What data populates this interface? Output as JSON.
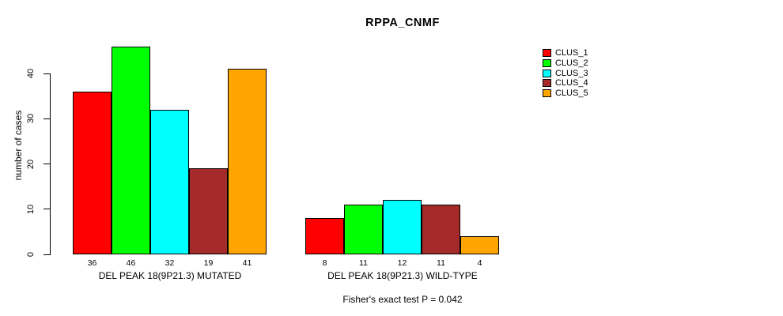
{
  "title": "RPPA_CNMF",
  "y_axis": {
    "label": "number of cases",
    "ticks": [
      "0",
      "10",
      "20",
      "30",
      "40"
    ]
  },
  "footer": {
    "stat_test": "Fisher's exact test P = 0.042"
  },
  "legend": {
    "items": [
      {
        "label": "CLUS_1",
        "color": "#FF0000"
      },
      {
        "label": "CLUS_2",
        "color": "#00FF00"
      },
      {
        "label": "CLUS_3",
        "color": "#00FFFF"
      },
      {
        "label": "CLUS_4",
        "color": "#A52A2A"
      },
      {
        "label": "CLUS_5",
        "color": "#FFA500"
      }
    ]
  },
  "chart_data": {
    "type": "bar",
    "title": "RPPA_CNMF",
    "xlabel": "",
    "ylabel": "number of cases",
    "ylim": [
      0,
      46
    ],
    "yticks": [
      0,
      10,
      20,
      30,
      40
    ],
    "grid": false,
    "legend_position": "right-outside",
    "annotation": "Fisher's exact test P = 0.042",
    "categories": [
      "DEL PEAK 18(9P21.3) MUTATED",
      "DEL PEAK 18(9P21.3) WILD-TYPE"
    ],
    "series": [
      {
        "name": "CLUS_1",
        "color": "#FF0000",
        "values": [
          36,
          8
        ]
      },
      {
        "name": "CLUS_2",
        "color": "#00FF00",
        "values": [
          46,
          11
        ]
      },
      {
        "name": "CLUS_3",
        "color": "#00FFFF",
        "values": [
          32,
          12
        ]
      },
      {
        "name": "CLUS_4",
        "color": "#A52A2A",
        "values": [
          19,
          11
        ]
      },
      {
        "name": "CLUS_5",
        "color": "#FFA500",
        "values": [
          41,
          4
        ]
      }
    ]
  }
}
